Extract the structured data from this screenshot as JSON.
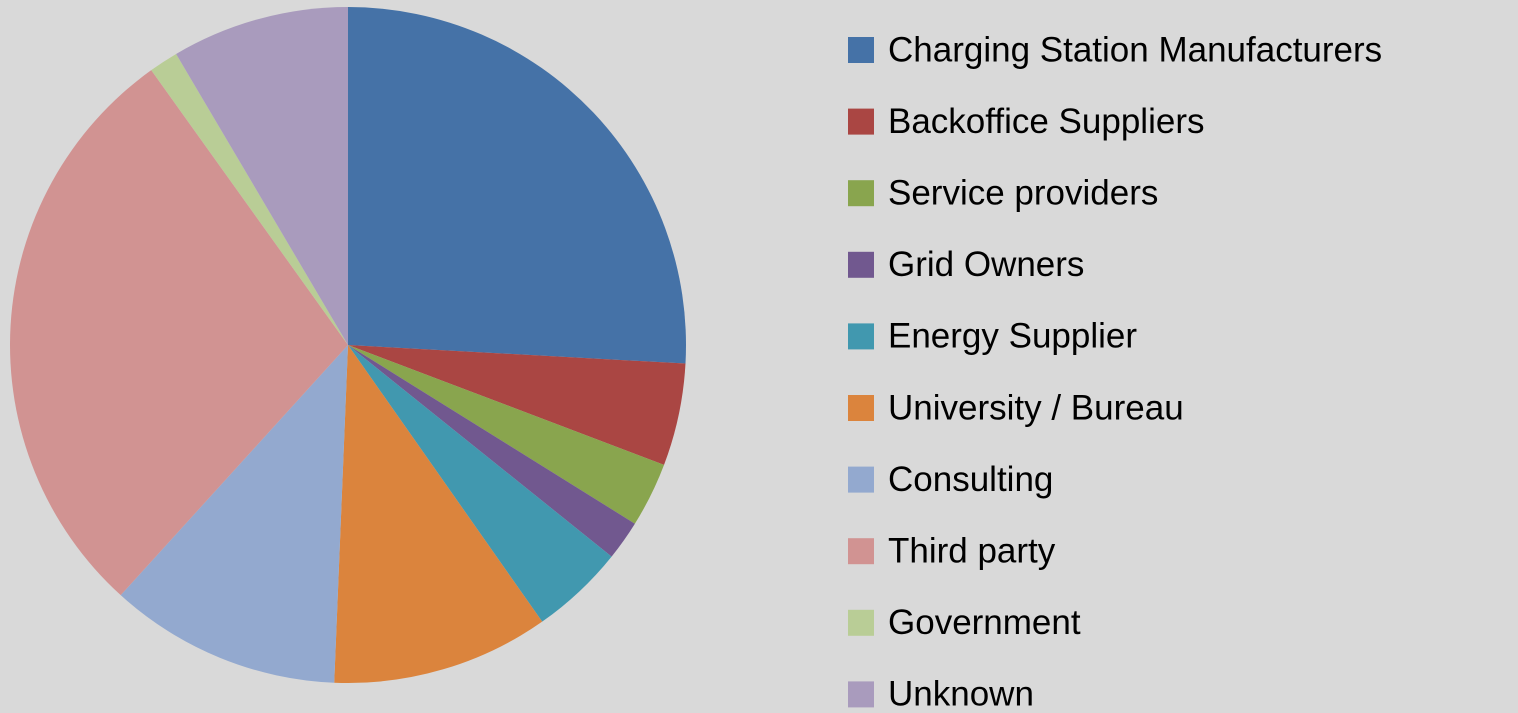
{
  "chart_data": {
    "type": "pie",
    "categories": [
      "Charging Station Manufacturers",
      "Backoffice Suppliers",
      "Service providers",
      "Grid Owners",
      "Energy Supplier",
      "University / Bureau",
      "Consulting",
      "Third party",
      "Government",
      "Unknown"
    ],
    "values": [
      25.9,
      4.9,
      3.1,
      1.9,
      4.5,
      10.4,
      11.1,
      28.4,
      1.4,
      8.5
    ],
    "colors": [
      "#4572A7",
      "#AA4643",
      "#89A54E",
      "#71588F",
      "#4198AF",
      "#DB843D",
      "#93A9CF",
      "#D19392",
      "#B9CD96",
      "#A99BBD"
    ],
    "legend": "right"
  }
}
